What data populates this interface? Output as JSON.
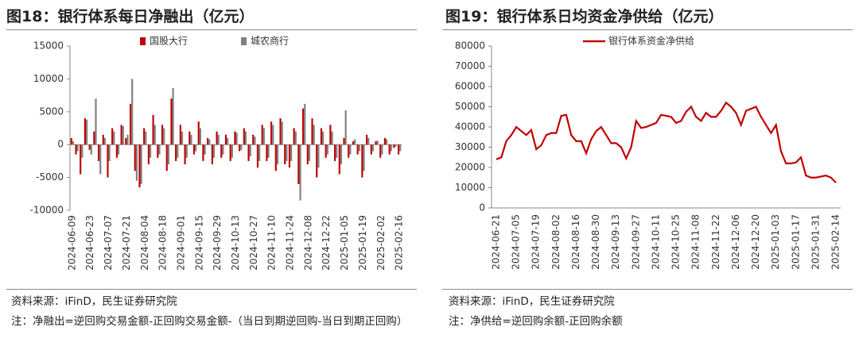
{
  "chart_data": [
    {
      "type": "bar",
      "title": "图18：银行体系每日净融出（亿元）",
      "categories": [
        "2024-06-09",
        null,
        null,
        null,
        "2024-06-23",
        null,
        null,
        null,
        "2024-07-07",
        null,
        null,
        null,
        "2024-07-21",
        null,
        null,
        null,
        "2024-08-04",
        null,
        null,
        null,
        "2024-08-18",
        null,
        null,
        null,
        "2024-09-01",
        null,
        null,
        null,
        "2024-09-15",
        null,
        null,
        null,
        "2024-09-29",
        null,
        null,
        null,
        "2024-10-13",
        null,
        null,
        null,
        "2024-10-27",
        null,
        null,
        null,
        "2024-11-10",
        null,
        null,
        null,
        "2024-11-24",
        null,
        null,
        null,
        "2024-12-08",
        null,
        null,
        null,
        "2024-12-22",
        null,
        null,
        null,
        "2025-01-05",
        null,
        null,
        null,
        "2025-01-19",
        null,
        null,
        null,
        "2025-02-02",
        null,
        null,
        null,
        "2025-02-16"
      ],
      "series": [
        {
          "name": "国股大行",
          "color": "#c00000",
          "values": [
            1000,
            -1500,
            -4500,
            4000,
            -800,
            2000,
            -2500,
            1500,
            -5000,
            2500,
            -2000,
            3000,
            1000,
            6200,
            -4000,
            -6500,
            2500,
            -3000,
            4500,
            -2000,
            3000,
            -4000,
            7000,
            -2500,
            3000,
            -3000,
            2000,
            -1500,
            3500,
            -2500,
            1000,
            -3000,
            2000,
            -2000,
            1500,
            -2500,
            2000,
            -1000,
            2500,
            -2500,
            1500,
            -3500,
            3000,
            -2500,
            3500,
            -4000,
            4000,
            -3000,
            -3500,
            2500,
            -6000,
            5500,
            -3000,
            4000,
            -5000,
            2500,
            -2000,
            3000,
            -2500,
            -4500,
            1000,
            -2000,
            500,
            -1500,
            -5000,
            1500,
            -1500,
            500,
            -2000,
            1000,
            -1500,
            -500,
            -1500
          ]
        },
        {
          "name": "城农商行",
          "color": "#808080",
          "values": [
            500,
            -1000,
            -2000,
            3800,
            -1500,
            7000,
            -4500,
            1000,
            -2500,
            2000,
            -1500,
            2800,
            1500,
            10000,
            -5500,
            -6000,
            2000,
            -2000,
            3000,
            -1500,
            2500,
            -3000,
            8600,
            -2000,
            2000,
            -2000,
            1500,
            -1000,
            2500,
            -1500,
            800,
            -2000,
            1500,
            -1500,
            1000,
            -2000,
            1800,
            -800,
            2000,
            -1800,
            1200,
            -2500,
            2500,
            -2000,
            3000,
            -3000,
            3500,
            -2500,
            -2500,
            2000,
            -8500,
            6200,
            -2500,
            3000,
            -3500,
            2000,
            -1500,
            2000,
            -2000,
            -3000,
            5200,
            -1500,
            800,
            -1000,
            -4000,
            1000,
            -1000,
            600,
            -1500,
            800,
            -1000,
            -300,
            -1000
          ]
        }
      ],
      "ylim": [
        -10000,
        15000
      ],
      "yticks": [
        -10000,
        -5000,
        0,
        5000,
        10000,
        15000
      ],
      "source": "资料来源：iFinD，民生证券研究院",
      "note": "注：净融出=逆回购交易金额-正回购交易金额-（当日到期逆回购-当日到期正回购）"
    },
    {
      "type": "line",
      "title": "图19：银行体系日均资金净供给（亿元）",
      "categories": [
        "2024-06-21",
        null,
        null,
        null,
        "2024-07-05",
        null,
        null,
        null,
        "2024-07-19",
        null,
        null,
        null,
        "2024-08-02",
        null,
        null,
        null,
        "2024-08-16",
        null,
        null,
        null,
        "2024-08-30",
        null,
        null,
        null,
        "2024-09-13",
        null,
        null,
        null,
        "2024-09-27",
        null,
        null,
        null,
        "2024-10-11",
        null,
        null,
        null,
        "2024-10-25",
        null,
        null,
        null,
        "2024-11-08",
        null,
        null,
        null,
        "2024-11-22",
        null,
        null,
        null,
        "2024-12-06",
        null,
        null,
        null,
        "2024-12-20",
        null,
        null,
        null,
        "2025-01-03",
        null,
        null,
        null,
        "2025-01-17",
        null,
        null,
        null,
        "2025-01-31",
        null,
        null,
        null,
        "2025-02-14"
      ],
      "series": [
        {
          "name": "银行体系资金净供给",
          "color": "#c00000",
          "values": [
            24000,
            25000,
            33000,
            36000,
            40000,
            38000,
            36000,
            38500,
            29000,
            31000,
            36000,
            37000,
            37000,
            45500,
            46000,
            36000,
            33000,
            33000,
            27000,
            34000,
            38000,
            40000,
            36000,
            32000,
            32000,
            30000,
            24500,
            30000,
            43000,
            39500,
            40000,
            41000,
            42000,
            46000,
            45500,
            45000,
            42000,
            43000,
            47500,
            50000,
            45000,
            43000,
            47000,
            45000,
            45000,
            48000,
            52000,
            50000,
            47000,
            41000,
            48000,
            49000,
            50000,
            45000,
            41000,
            37000,
            41000,
            28000,
            22000,
            22000,
            22500,
            25000,
            16000,
            15000,
            15000,
            15500,
            16000,
            15000,
            12500
          ]
        }
      ],
      "ylim": [
        0,
        80000
      ],
      "yticks": [
        0,
        10000,
        20000,
        30000,
        40000,
        50000,
        60000,
        70000,
        80000
      ],
      "source": "资料来源：iFinD，民生证券研究院",
      "note": "注：净供给=逆回购余额-正回购余额"
    }
  ]
}
